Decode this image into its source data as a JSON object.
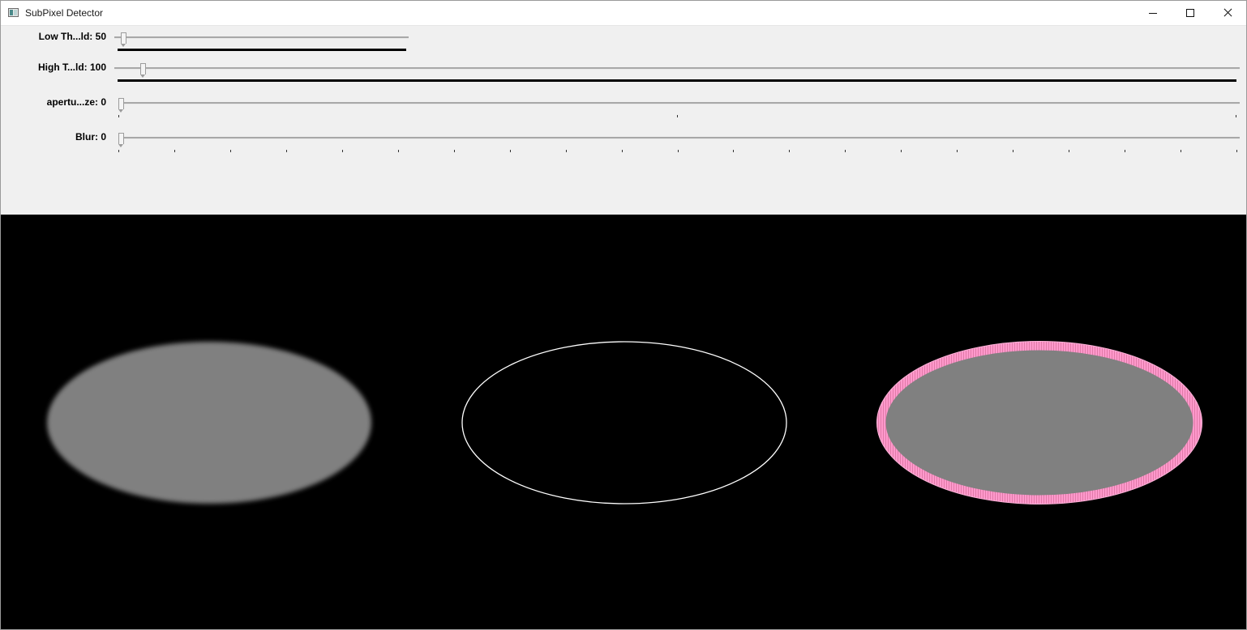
{
  "window": {
    "title": "SubPixel Detector",
    "icon": "app-window-icon",
    "buttons": [
      "minimize-icon",
      "maximize-icon",
      "close-icon"
    ]
  },
  "trackbars": [
    {
      "label": "Low Th...ld: 50",
      "value": 50
    },
    {
      "label": "High T...ld: 100",
      "value": 100
    },
    {
      "label": "apertu...ze: 0",
      "value": 0
    },
    {
      "label": "Blur: 0",
      "value": 0
    }
  ],
  "views": [
    {
      "name": "blurred-input",
      "fill": "#808080"
    },
    {
      "name": "edge-contour",
      "stroke": "#ffffff"
    },
    {
      "name": "subpixel-overlay",
      "fill": "#808080",
      "stroke": "#ff99cc"
    }
  ]
}
